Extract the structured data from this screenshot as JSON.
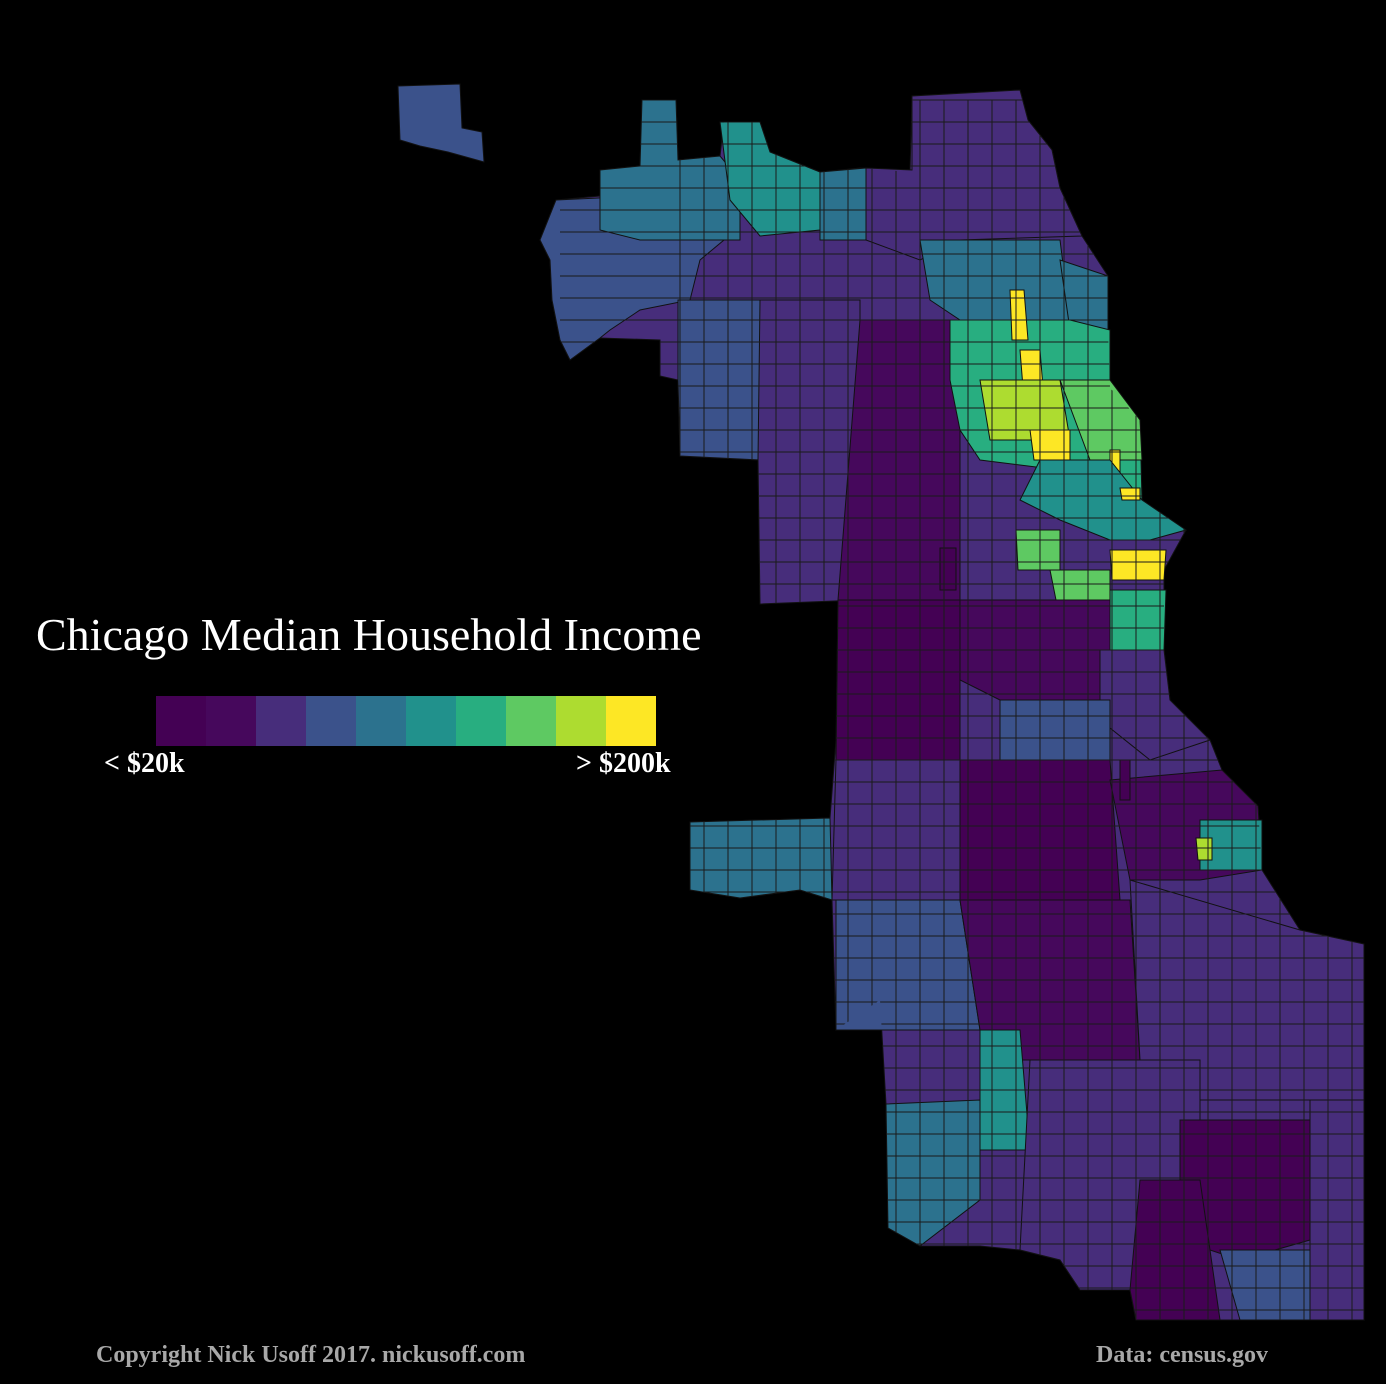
{
  "title": "Chicago Median Household Income",
  "legend": {
    "min_label": "< $20k",
    "max_label": "> $200k",
    "colors": [
      "#440154",
      "#46085c",
      "#472d7b",
      "#3b528b",
      "#2c728e",
      "#21918c",
      "#28ae80",
      "#5ec962",
      "#addc30",
      "#fde725"
    ]
  },
  "footer": {
    "copyright": "Copyright Nick Usoff 2017. nickusoff.com",
    "source": "Data: census.gov"
  },
  "map": {
    "background": "#000000",
    "tract_stroke": "#111111"
  }
}
